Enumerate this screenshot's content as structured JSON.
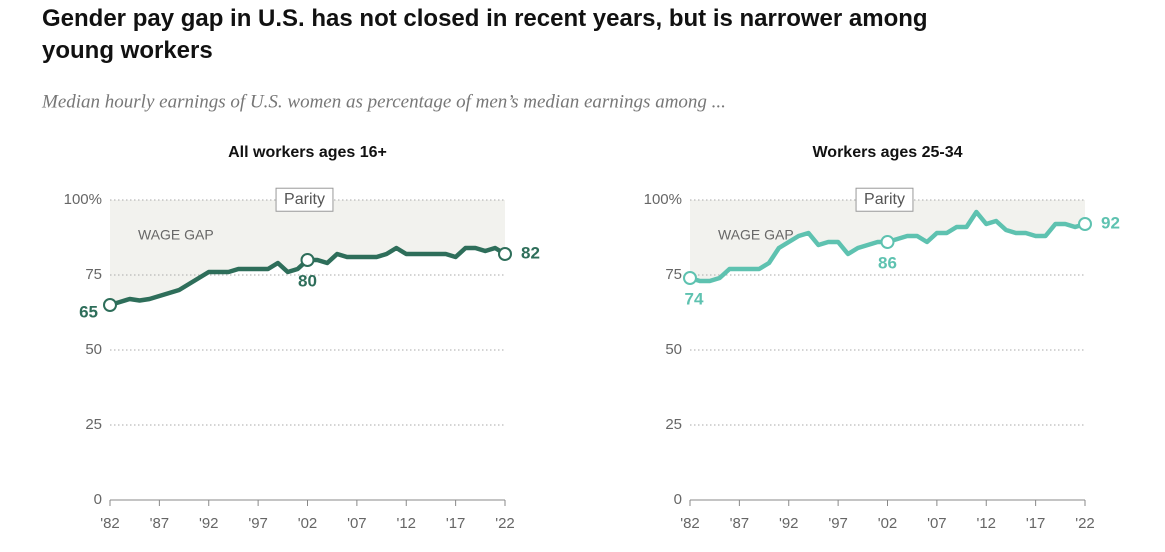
{
  "title": "Gender pay gap in U.S. has not closed in recent years, but is narrower among young workers",
  "subtitle": "Median hourly earnings of U.S. women as percentage of men’s median earnings among ...",
  "chart_data": [
    {
      "type": "line",
      "title": "All workers ages 16+",
      "color": "#2e6e5a",
      "x": [
        1982,
        1983,
        1984,
        1985,
        1986,
        1987,
        1988,
        1989,
        1990,
        1991,
        1992,
        1993,
        1994,
        1995,
        1996,
        1997,
        1998,
        1999,
        2000,
        2001,
        2002,
        2003,
        2004,
        2005,
        2006,
        2007,
        2008,
        2009,
        2010,
        2011,
        2012,
        2013,
        2014,
        2015,
        2016,
        2017,
        2018,
        2019,
        2020,
        2021,
        2022
      ],
      "values": [
        65,
        66,
        67,
        66.5,
        67,
        68,
        69,
        70,
        72,
        74,
        76,
        76,
        76,
        77,
        77,
        77,
        77,
        79,
        76,
        77,
        80,
        80,
        79,
        82,
        81,
        81,
        81,
        81,
        82,
        84,
        82,
        82,
        82,
        82,
        82,
        81,
        84,
        84,
        83,
        84,
        82
      ],
      "labeled_points": [
        0,
        20,
        40
      ],
      "annotations": [
        "Parity",
        "WAGE GAP"
      ],
      "xlim": [
        1982,
        2022
      ],
      "xticks": [
        {
          "value": 1982,
          "label": "'82"
        },
        {
          "value": 1987,
          "label": "'87"
        },
        {
          "value": 1992,
          "label": "'92"
        },
        {
          "value": 1997,
          "label": "'97"
        },
        {
          "value": 2002,
          "label": "'02"
        },
        {
          "value": 2007,
          "label": "'07"
        },
        {
          "value": 2012,
          "label": "'12"
        },
        {
          "value": 2017,
          "label": "'17"
        },
        {
          "value": 2022,
          "label": "'22"
        }
      ],
      "ylim": [
        0,
        100
      ],
      "yticks": [
        0,
        25,
        50,
        75,
        {
          "value": 100,
          "label": "100%"
        }
      ],
      "grid": true
    },
    {
      "type": "line",
      "title": "Workers ages 25-34",
      "color": "#5ec2b0",
      "x": [
        1982,
        1983,
        1984,
        1985,
        1986,
        1987,
        1988,
        1989,
        1990,
        1991,
        1992,
        1993,
        1994,
        1995,
        1996,
        1997,
        1998,
        1999,
        2000,
        2001,
        2002,
        2003,
        2004,
        2005,
        2006,
        2007,
        2008,
        2009,
        2010,
        2011,
        2012,
        2013,
        2014,
        2015,
        2016,
        2017,
        2018,
        2019,
        2020,
        2021,
        2022
      ],
      "values": [
        74,
        73,
        73,
        74,
        77,
        77,
        77,
        77,
        79,
        84,
        86,
        88,
        89,
        85,
        86,
        86,
        82,
        84,
        85,
        86,
        86,
        87,
        88,
        88,
        86,
        89,
        89,
        91,
        91,
        96,
        92,
        93,
        90,
        89,
        89,
        88,
        88,
        92,
        92,
        91,
        92
      ],
      "labeled_points": [
        0,
        20,
        40
      ],
      "annotations": [
        "Parity",
        "WAGE GAP"
      ],
      "xlim": [
        1982,
        2022
      ],
      "xticks": [
        {
          "value": 1982,
          "label": "'82"
        },
        {
          "value": 1987,
          "label": "'87"
        },
        {
          "value": 1992,
          "label": "'92"
        },
        {
          "value": 1997,
          "label": "'97"
        },
        {
          "value": 2002,
          "label": "'02"
        },
        {
          "value": 2007,
          "label": "'07"
        },
        {
          "value": 2012,
          "label": "'12"
        },
        {
          "value": 2017,
          "label": "'17"
        },
        {
          "value": 2022,
          "label": "'22"
        }
      ],
      "ylim": [
        0,
        100
      ],
      "yticks": [
        0,
        25,
        50,
        75,
        {
          "value": 100,
          "label": "100%"
        }
      ],
      "grid": true
    }
  ]
}
